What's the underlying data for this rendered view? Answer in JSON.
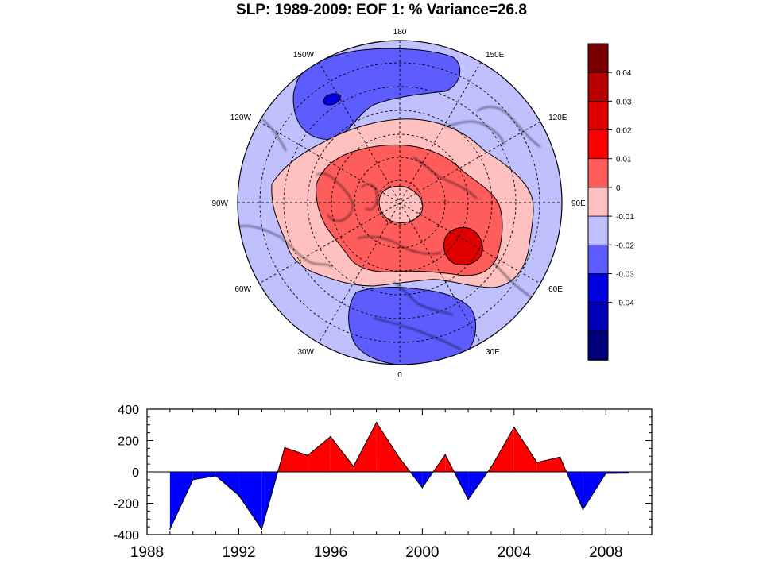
{
  "figure": {
    "title": "SLP: 1989-2009: EOF 1: % Variance=26.8"
  },
  "chart_data": [
    {
      "type": "heatmap",
      "title": "SLP: 1989-2009: EOF 1: % Variance=26.8",
      "projection": "north polar stereographic",
      "longitude_labels": [
        "180",
        "150E",
        "120E",
        "90E",
        "60E",
        "30E",
        "0",
        "30W",
        "60W",
        "90W",
        "120W",
        "150W"
      ],
      "colorbar": {
        "levels": [
          "0.04",
          "0.03",
          "0.02",
          "0.01",
          "0",
          "-0.01",
          "-0.02",
          "-0.03",
          "-0.04"
        ],
        "colors": [
          "#7a0000",
          "#b80000",
          "#e00000",
          "#ff0000",
          "#ff5c5c",
          "#ffc0c0",
          "#c0c0ff",
          "#5c5cff",
          "#0000e0",
          "#0000b8",
          "#00007a"
        ]
      },
      "features": [
        {
          "name": "negative anomaly over North Pacific (150W-180)",
          "level": "-0.01 to -0.03"
        },
        {
          "name": "positive anomaly ring over Arctic",
          "level": "0 to 0.02"
        },
        {
          "name": "positive anomaly maximum over Siberia (~60E-90E)",
          "level": "0.02 to 0.03"
        },
        {
          "name": "negative anomaly over North Atlantic / Europe (30W-30E)",
          "level": "-0.01 to -0.02"
        }
      ]
    },
    {
      "type": "area",
      "x": [
        1989,
        1990,
        1991,
        1992,
        1993,
        1994,
        1995,
        1996,
        1997,
        1998,
        1999,
        2000,
        2001,
        2002,
        2003,
        2004,
        2005,
        2006,
        2007,
        2008,
        2009
      ],
      "y": [
        -365,
        -50,
        -25,
        -150,
        -365,
        155,
        105,
        225,
        35,
        315,
        90,
        -100,
        110,
        -175,
        30,
        285,
        60,
        95,
        -240,
        -10,
        -8
      ],
      "xlim": [
        1988,
        2010
      ],
      "ylim": [
        -400,
        400
      ],
      "xticks": [
        "1988",
        "1992",
        "1996",
        "2000",
        "2004",
        "2008"
      ],
      "yticks": [
        "400",
        "200",
        "0",
        "-200",
        "-400"
      ],
      "positive_color": "#ff0000",
      "negative_color": "#0000ff"
    }
  ]
}
